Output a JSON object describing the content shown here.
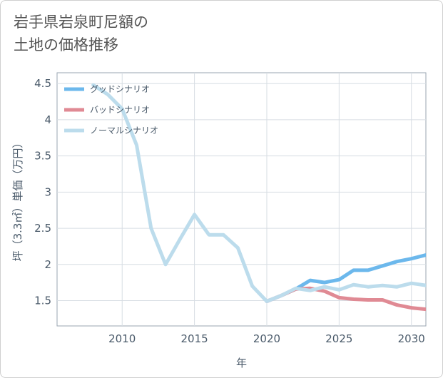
{
  "title_lines": [
    "岩手県岩泉町尼額の",
    "土地の価格推移"
  ],
  "chart_data": {
    "type": "line",
    "xlabel": "年",
    "ylabel": "坪（3.3㎡）単価（万円）",
    "xlim": [
      2005.5,
      2031
    ],
    "ylim": [
      1.15,
      4.65
    ],
    "x_ticks": [
      2010,
      2015,
      2020,
      2025,
      2030
    ],
    "y_ticks": [
      1.5,
      2,
      2.5,
      3,
      3.5,
      4,
      4.5
    ],
    "x_tick_labels": [
      "2010",
      "2015",
      "2020",
      "2025",
      "2030"
    ],
    "y_tick_labels": [
      "1.5",
      "2",
      "2.5",
      "3",
      "3.5",
      "4",
      "4.5"
    ],
    "grid": true,
    "legend_position": "top-left",
    "series": [
      {
        "name": "グッドシナリオ",
        "color": "#6cb8ec",
        "x": [
          2020,
          2021,
          2022,
          2023,
          2024,
          2025,
          2026,
          2027,
          2028,
          2029,
          2030,
          2031
        ],
        "y": [
          1.49,
          1.57,
          1.66,
          1.78,
          1.75,
          1.79,
          1.92,
          1.92,
          1.98,
          2.04,
          2.08,
          2.13
        ]
      },
      {
        "name": "バッドシナリオ",
        "color": "#e08a94",
        "x": [
          2020,
          2021,
          2022,
          2023,
          2024,
          2025,
          2026,
          2027,
          2028,
          2029,
          2030,
          2031
        ],
        "y": [
          1.49,
          1.57,
          1.66,
          1.67,
          1.63,
          1.54,
          1.52,
          1.51,
          1.51,
          1.44,
          1.4,
          1.38
        ]
      },
      {
        "name": "ノーマルシナリオ",
        "color": "#bcdcec",
        "x": [
          2008,
          2009,
          2010,
          2011,
          2012,
          2013,
          2014,
          2015,
          2016,
          2017,
          2018,
          2019,
          2020,
          2021,
          2022,
          2023,
          2024,
          2025,
          2026,
          2027,
          2028,
          2029,
          2030,
          2031
        ],
        "y": [
          4.48,
          4.35,
          4.15,
          3.65,
          2.5,
          2.0,
          2.35,
          2.69,
          2.41,
          2.41,
          2.23,
          1.7,
          1.49,
          1.57,
          1.67,
          1.64,
          1.69,
          1.65,
          1.72,
          1.69,
          1.71,
          1.69,
          1.74,
          1.71
        ]
      }
    ]
  }
}
